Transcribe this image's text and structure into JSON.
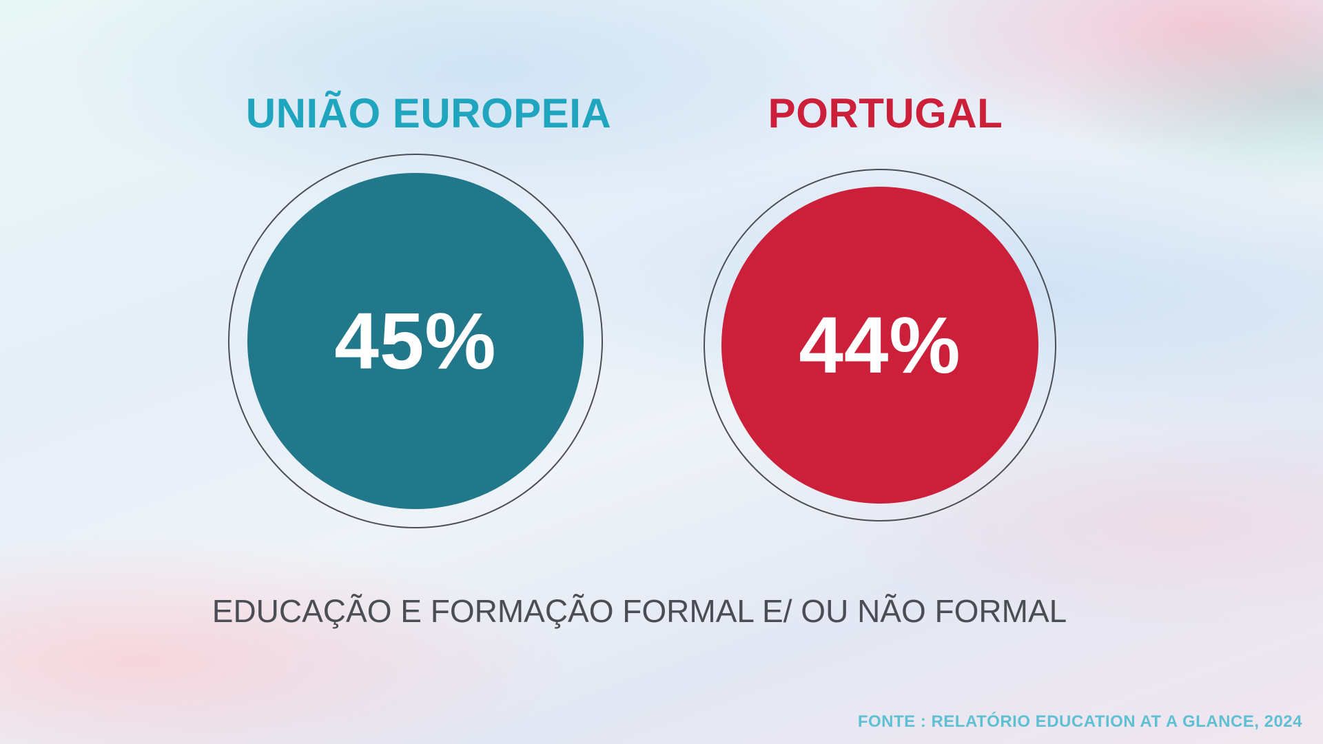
{
  "chart_data": {
    "type": "bar",
    "categories": [
      "UNIÃO EUROPEIA",
      "PORTUGAL"
    ],
    "values": [
      45,
      44
    ],
    "value_labels": [
      "45%",
      "44%"
    ],
    "colors": [
      "#21788a",
      "#cb1f3a"
    ],
    "title_colors": [
      "#1fa5bd",
      "#cb1f3a"
    ],
    "caption": "EDUCAÇÃO E FORMAÇÃO FORMAL E/ OU NÃO FORMAL",
    "source": "FONTE : RELATÓRIO EDUCATION AT A GLANCE, 2024"
  }
}
